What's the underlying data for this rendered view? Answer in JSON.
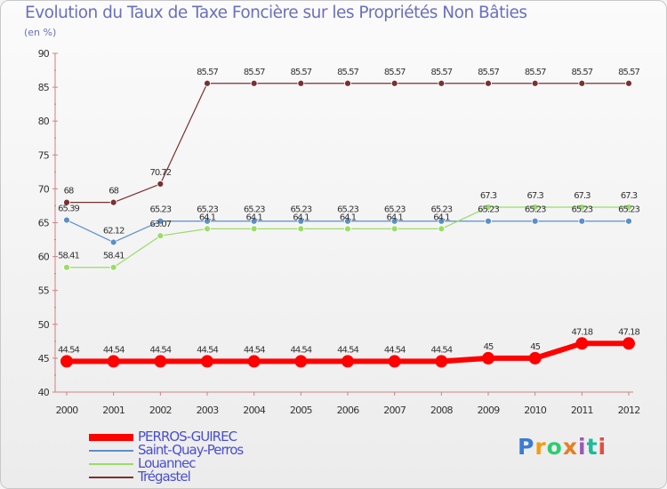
{
  "header": {
    "title": "Evolution du Taux de Taxe Foncière sur les Propriétés Non Bâties",
    "subtitle": "(en %)"
  },
  "logo": {
    "text": "Proxiti",
    "colors": [
      "#3a7bd5",
      "#f39c12",
      "#2ecc71",
      "#e67e22",
      "#9b59b6",
      "#1abc9c",
      "#e74c3c"
    ]
  },
  "chart_data": {
    "type": "line",
    "title": "Evolution du Taux de Taxe Foncière sur les Propriétés Non Bâties",
    "ylabel": "(en %)",
    "xlabel": "",
    "x": [
      "2000",
      "2001",
      "2002",
      "2003",
      "2004",
      "2005",
      "2006",
      "2007",
      "2008",
      "2009",
      "2010",
      "2011",
      "2012"
    ],
    "ylim": [
      40,
      90
    ],
    "yticks": [
      "40",
      "45",
      "50",
      "55",
      "60",
      "65",
      "70",
      "75",
      "80",
      "85",
      "90"
    ],
    "grid": false,
    "legend": "bottom-left",
    "series": [
      {
        "name": "Trégastel",
        "color": "#7a3030",
        "values": [
          68,
          68,
          70.72,
          85.57,
          85.57,
          85.57,
          85.57,
          85.57,
          85.57,
          85.57,
          85.57,
          85.57,
          85.57
        ],
        "labels": [
          "68",
          "68",
          "70.72",
          "85.57",
          "85.57",
          "85.57",
          "85.57",
          "85.57",
          "85.57",
          "85.57",
          "85.57",
          "85.57",
          "85.57"
        ]
      },
      {
        "name": "Saint-Quay-Perros",
        "color": "#5a8fc8",
        "values": [
          65.39,
          62.12,
          65.23,
          65.23,
          65.23,
          65.23,
          65.23,
          65.23,
          65.23,
          65.23,
          65.23,
          65.23,
          65.23
        ],
        "labels": [
          "65.39",
          "62.12",
          "65.23",
          "65.23",
          "65.23",
          "65.23",
          "65.23",
          "65.23",
          "65.23",
          "65.23",
          "65.23",
          "65.23",
          "65.23"
        ]
      },
      {
        "name": "Louannec",
        "color": "#99dd66",
        "values": [
          58.41,
          58.41,
          63.07,
          64.1,
          64.1,
          64.1,
          64.1,
          64.1,
          64.1,
          67.3,
          67.3,
          67.3,
          67.3
        ],
        "labels": [
          "58.41",
          "58.41",
          "63.07",
          "64.1",
          "64.1",
          "64.1",
          "64.1",
          "64.1",
          "64.1",
          "67.3",
          "67.3",
          "67.3",
          "67.3"
        ]
      },
      {
        "name": "PERROS-GUIREC",
        "color": "#ff0000",
        "values": [
          44.54,
          44.54,
          44.54,
          44.54,
          44.54,
          44.54,
          44.54,
          44.54,
          44.54,
          45,
          45,
          47.18,
          47.18
        ],
        "labels": [
          "44.54",
          "44.54",
          "44.54",
          "44.54",
          "44.54",
          "44.54",
          "44.54",
          "44.54",
          "44.54",
          "45",
          "45",
          "47.18",
          "47.18"
        ]
      }
    ],
    "legend_order": [
      "PERROS-GUIREC",
      "Saint-Quay-Perros",
      "Louannec",
      "Trégastel"
    ]
  }
}
